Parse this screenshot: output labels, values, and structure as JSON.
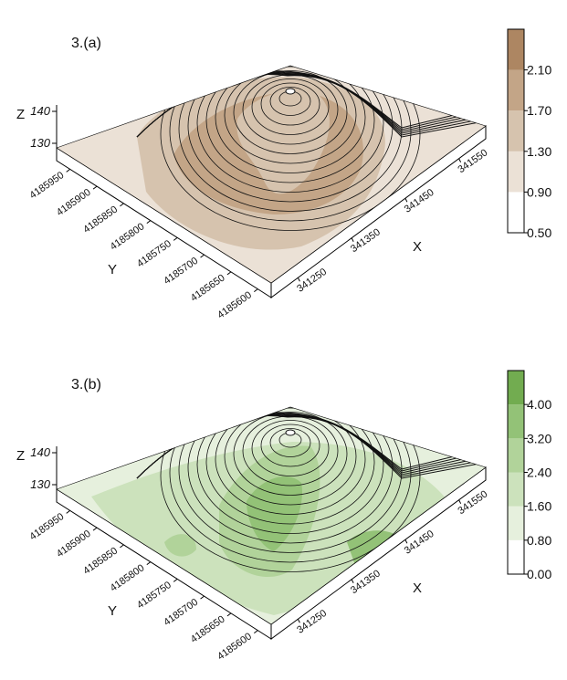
{
  "chart_data": [
    {
      "type": "surface",
      "title": "3.(a)",
      "xlabel": "X",
      "ylabel": "Y",
      "zlabel": "Z",
      "xlim": [
        341200,
        341600
      ],
      "xticks": [
        341250,
        341350,
        341450,
        341550
      ],
      "ylim": [
        4185575,
        4185975
      ],
      "yticks": [
        4185600,
        4185650,
        4185700,
        4185750,
        4185800,
        4185850,
        4185900,
        4185950
      ],
      "zlim": [
        128,
        142
      ],
      "zticks": [
        130,
        140
      ],
      "clim": [
        0.5,
        2.5
      ],
      "cticks": [
        {
          "value": 0.5,
          "label": "0.50"
        },
        {
          "value": 0.9,
          "label": "0.90"
        },
        {
          "value": 1.3,
          "label": "1.30"
        },
        {
          "value": 1.7,
          "label": "1.70"
        },
        {
          "value": 2.1,
          "label": "2.10"
        }
      ],
      "colors": [
        "#ffffff",
        "#ebe1d6",
        "#d6c3ae",
        "#c3a587",
        "#ad8662",
        "#9a6a3e"
      ]
    },
    {
      "type": "surface",
      "title": "3.(b)",
      "xlabel": "X",
      "ylabel": "Y",
      "zlabel": "Z",
      "xlim": [
        341200,
        341600
      ],
      "xticks": [
        341250,
        341350,
        341450,
        341550
      ],
      "ylim": [
        4185575,
        4185975
      ],
      "yticks": [
        4185600,
        4185650,
        4185700,
        4185750,
        4185800,
        4185850,
        4185900,
        4185950
      ],
      "zlim": [
        128,
        142
      ],
      "zticks": [
        130,
        140
      ],
      "clim": [
        0,
        4.8
      ],
      "cticks": [
        {
          "value": 0,
          "label": "0.00"
        },
        {
          "value": 0.8,
          "label": "0.80"
        },
        {
          "value": 1.6,
          "label": "1.60"
        },
        {
          "value": 2.4,
          "label": "2.40"
        },
        {
          "value": 3.2,
          "label": "3.20"
        },
        {
          "value": 4,
          "label": "4.00"
        }
      ],
      "colors": [
        "#ffffff",
        "#e6f0dd",
        "#cce2bc",
        "#b1d39a",
        "#93c277",
        "#72ac50"
      ]
    }
  ]
}
